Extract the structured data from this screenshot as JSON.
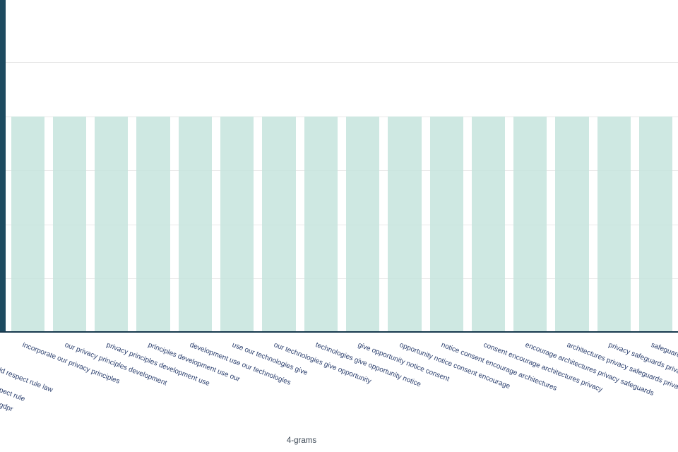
{
  "chart_data": {
    "type": "bar",
    "title": "",
    "xlabel": "4-grams",
    "ylabel": "",
    "y_axis_visible": false,
    "grid": "horizontal-faint",
    "legend": "none",
    "highlight_bar": {
      "value": 3,
      "clipped_at_left_edge": true,
      "label_fragment": "ld respect rule law"
    },
    "categories": [
      "incorporate our privacy principles",
      "our privacy principles development",
      "privacy principles development use",
      "principles development use our",
      "development use our technologies",
      "use our technologies give",
      "our technologies give opportunity",
      "technologies give opportunity notice",
      "give opportunity notice consent",
      "opportunity notice consent encourage",
      "notice consent encourage architectures",
      "consent encourage architectures privacy",
      "encourage architectures privacy safeguards",
      "architectures privacy safeguards privacy",
      "privacy safeguards privacy design",
      "safeguards privacy design default"
    ],
    "values": [
      2,
      2,
      2,
      2,
      2,
      2,
      2,
      2,
      2,
      2,
      2,
      2,
      2,
      2,
      2,
      2
    ],
    "clipped_left_label_fragments": [
      "ld respect rule law",
      "pect rule",
      "gdpr"
    ],
    "colors": {
      "highlight_bar": "#1d4a60",
      "bar": "#d2e9e4",
      "axis_line": "#17394e",
      "tick_label": "#2b3f6e",
      "axis_title": "#3b4754",
      "gridline": "#e9e9e9",
      "background": "#ffffff"
    }
  }
}
